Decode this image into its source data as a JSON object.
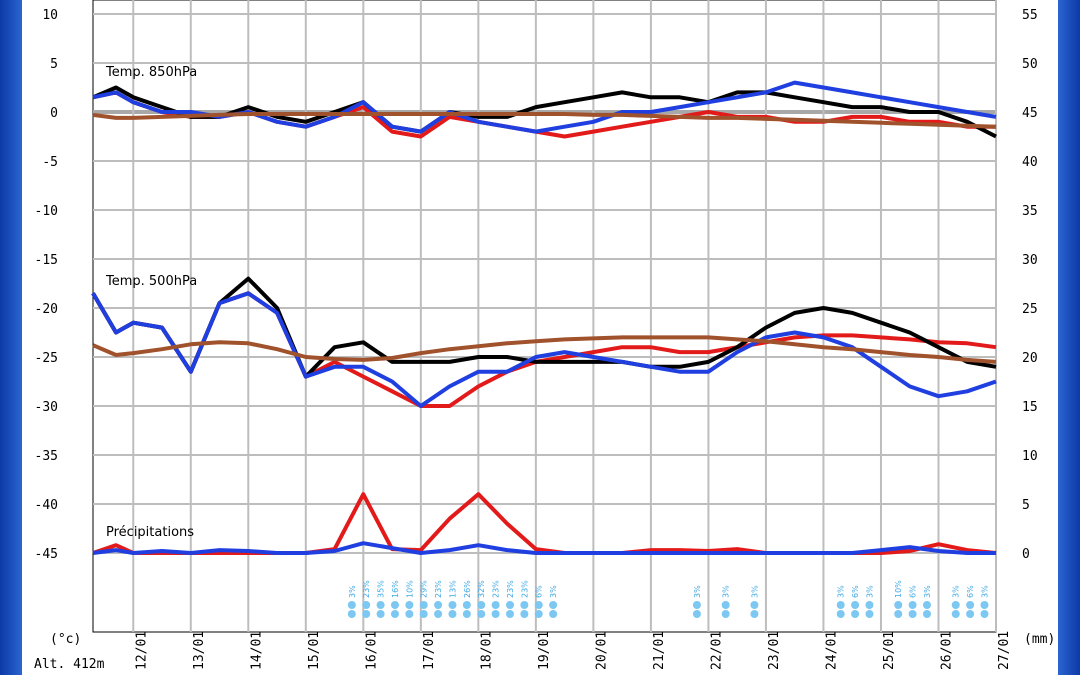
{
  "chart_data": {
    "type": "line",
    "panels": [
      {
        "title": "Temp. 850hPa",
        "unit": "°C"
      },
      {
        "title": "Temp. 500hPa",
        "unit": "°C"
      },
      {
        "title": "Précipitations",
        "unit": "mm"
      }
    ],
    "left_axis": {
      "unit": "(°c)",
      "ticks": [
        10,
        5,
        0,
        -5,
        -10,
        -15,
        -20,
        -25,
        -30,
        -35,
        -40,
        -45
      ],
      "range": [
        -45,
        10
      ]
    },
    "right_axis": {
      "unit": "(mm)",
      "ticks": [
        55,
        50,
        45,
        40,
        35,
        30,
        25,
        20,
        15,
        10,
        5,
        0
      ],
      "range": [
        0,
        55
      ]
    },
    "x_dates": [
      "12/01",
      "13/01",
      "14/01",
      "15/01",
      "16/01",
      "17/01",
      "18/01",
      "19/01",
      "20/01",
      "21/01",
      "22/01",
      "23/01",
      "24/01",
      "25/01",
      "26/01",
      "27/01"
    ],
    "altitude": "Alt. 412m",
    "grid": true,
    "x_days": [
      11.3,
      11.7,
      12.0,
      12.5,
      13.0,
      13.5,
      14.0,
      14.5,
      15.0,
      15.5,
      16.0,
      16.5,
      17.0,
      17.5,
      18.0,
      18.5,
      19.0,
      19.5,
      20.0,
      20.5,
      21.0,
      21.5,
      22.0,
      22.5,
      23.0,
      23.5,
      24.0,
      24.5,
      25.0,
      25.5,
      26.0,
      26.5,
      27.0
    ],
    "series": [
      {
        "name": "Temp. 850hPa",
        "color": "#e31a1a",
        "unit": "°C",
        "values": [
          1.5,
          2,
          1,
          0,
          -0.5,
          -0.5,
          0,
          -1,
          -1.5,
          -0.5,
          0.5,
          -2,
          -2.5,
          -0.5,
          -1,
          -1.5,
          -2,
          -2.5,
          -2,
          -1.5,
          -1,
          -0.5,
          0,
          -0.5,
          -0.5,
          -1,
          -1,
          -0.5,
          -0.5,
          -1,
          -1,
          -1.5,
          -1.5
        ]
      },
      {
        "name": "Temp. 850hPa",
        "color": "#000000",
        "unit": "°C",
        "values": [
          1.5,
          2.5,
          1.5,
          0.5,
          -0.5,
          -0.5,
          0.5,
          -0.5,
          -1,
          0,
          1,
          -1.5,
          -2,
          0,
          -0.5,
          -0.5,
          0.5,
          1,
          1.5,
          2,
          1.5,
          1.5,
          1,
          2,
          2,
          1.5,
          1,
          0.5,
          0.5,
          0,
          0,
          -1,
          -2.5
        ]
      },
      {
        "name": "Temp. 850hPa",
        "color": "#1f3fe0",
        "unit": "°C",
        "values": [
          1.5,
          2,
          1,
          0,
          0,
          -0.5,
          0,
          -1,
          -1.5,
          -0.5,
          1,
          -1.5,
          -2,
          0,
          -1,
          -1.5,
          -2,
          -1.5,
          -1,
          0,
          0,
          0.5,
          1,
          1.5,
          2,
          3,
          2.5,
          2,
          1.5,
          1,
          0.5,
          0,
          -0.5
        ]
      },
      {
        "name": "Temp. 850hPa",
        "color": "#a0522d",
        "unit": "°C",
        "values": [
          -0.3,
          -0.6,
          -0.6,
          -0.5,
          -0.4,
          -0.3,
          -0.2,
          -0.2,
          -0.2,
          -0.2,
          -0.2,
          -0.2,
          -0.2,
          -0.2,
          -0.2,
          -0.2,
          -0.2,
          -0.2,
          -0.3,
          -0.3,
          -0.4,
          -0.5,
          -0.6,
          -0.6,
          -0.7,
          -0.8,
          -0.9,
          -1,
          -1.1,
          -1.2,
          -1.3,
          -1.4,
          -1.5
        ]
      },
      {
        "name": "Temp. 500hPa",
        "color": "#e31a1a",
        "unit": "°C",
        "values": [
          -18.5,
          -22.5,
          -21.5,
          -22,
          -26.5,
          -19.5,
          -18.5,
          -20.5,
          -27,
          -25.5,
          -27,
          -28.5,
          -30,
          -30,
          -28,
          -26.5,
          -25.5,
          -25,
          -24.5,
          -24,
          -24,
          -24.5,
          -24.5,
          -24,
          -23.5,
          -23,
          -22.8,
          -22.8,
          -23,
          -23.2,
          -23.5,
          -23.6,
          -24
        ]
      },
      {
        "name": "Temp. 500hPa",
        "color": "#000000",
        "unit": "°C",
        "values": [
          -18.5,
          -22.5,
          -21.5,
          -22,
          -26.5,
          -19.5,
          -17,
          -20,
          -27,
          -24,
          -23.5,
          -25.5,
          -25.5,
          -25.5,
          -25,
          -25,
          -25.5,
          -25.5,
          -25.5,
          -25.5,
          -26,
          -26,
          -25.5,
          -24,
          -22,
          -20.5,
          -20,
          -20.5,
          -21.5,
          -22.5,
          -24,
          -25.5,
          -26
        ]
      },
      {
        "name": "Temp. 500hPa",
        "color": "#1f3fe0",
        "unit": "°C",
        "values": [
          -18.5,
          -22.5,
          -21.5,
          -22,
          -26.5,
          -19.5,
          -18.5,
          -20.5,
          -27,
          -26,
          -26,
          -27.5,
          -30,
          -28,
          -26.5,
          -26.5,
          -25,
          -24.5,
          -25,
          -25.5,
          -26,
          -26.5,
          -26.5,
          -24.5,
          -23,
          -22.5,
          -23,
          -24,
          -26,
          -28,
          -29,
          -28.5,
          -27.5
        ]
      },
      {
        "name": "Temp. 500hPa",
        "color": "#a0522d",
        "unit": "°C",
        "values": [
          -23.8,
          -24.8,
          -24.6,
          -24.2,
          -23.7,
          -23.5,
          -23.6,
          -24.2,
          -25,
          -25.2,
          -25.3,
          -25.1,
          -24.6,
          -24.2,
          -23.9,
          -23.6,
          -23.4,
          -23.2,
          -23.1,
          -23,
          -23,
          -23,
          -23,
          -23.2,
          -23.4,
          -23.7,
          -24,
          -24.2,
          -24.5,
          -24.8,
          -25,
          -25.3,
          -25.5
        ]
      },
      {
        "name": "Précipitations",
        "color": "#e31a1a",
        "unit": "mm",
        "values": [
          0,
          0.8,
          0,
          0,
          0,
          0,
          0,
          0,
          0,
          0.4,
          6,
          0.4,
          0.3,
          3.5,
          6,
          3,
          0.4,
          0,
          0,
          0,
          0.3,
          0.3,
          0.2,
          0.4,
          0,
          0,
          0,
          0,
          0,
          0.2,
          0.9,
          0.3,
          0
        ]
      },
      {
        "name": "Précipitations",
        "color": "#1f3fe0",
        "unit": "mm",
        "values": [
          0,
          0.3,
          0,
          0.2,
          0,
          0.3,
          0.2,
          0,
          0,
          0.2,
          1,
          0.5,
          0,
          0.3,
          0.8,
          0.3,
          0,
          0,
          0,
          0,
          0,
          0,
          0,
          0,
          0,
          0,
          0,
          0,
          0.3,
          0.6,
          0.2,
          0,
          0
        ]
      }
    ],
    "snow_labels": [
      {
        "day": 15.8,
        "text": "3%"
      },
      {
        "day": 16.05,
        "text": "23%"
      },
      {
        "day": 16.3,
        "text": "35%"
      },
      {
        "day": 16.55,
        "text": "16%"
      },
      {
        "day": 16.8,
        "text": "10%"
      },
      {
        "day": 17.05,
        "text": "29%"
      },
      {
        "day": 17.3,
        "text": "23%"
      },
      {
        "day": 17.55,
        "text": "13%"
      },
      {
        "day": 17.8,
        "text": "26%"
      },
      {
        "day": 18.05,
        "text": "32%"
      },
      {
        "day": 18.3,
        "text": "23%"
      },
      {
        "day": 18.55,
        "text": "23%"
      },
      {
        "day": 18.8,
        "text": "23%"
      },
      {
        "day": 19.05,
        "text": "6%"
      },
      {
        "day": 19.3,
        "text": "3%"
      },
      {
        "day": 21.8,
        "text": "3%"
      },
      {
        "day": 22.3,
        "text": "3%"
      },
      {
        "day": 22.8,
        "text": "3%"
      },
      {
        "day": 24.3,
        "text": "3%"
      },
      {
        "day": 24.55,
        "text": "6%"
      },
      {
        "day": 24.8,
        "text": "3%"
      },
      {
        "day": 25.3,
        "text": "10%"
      },
      {
        "day": 25.55,
        "text": "6%"
      },
      {
        "day": 25.8,
        "text": "3%"
      },
      {
        "day": 26.3,
        "text": "3%"
      },
      {
        "day": 26.55,
        "text": "6%"
      },
      {
        "day": 26.8,
        "text": "3%"
      }
    ]
  }
}
